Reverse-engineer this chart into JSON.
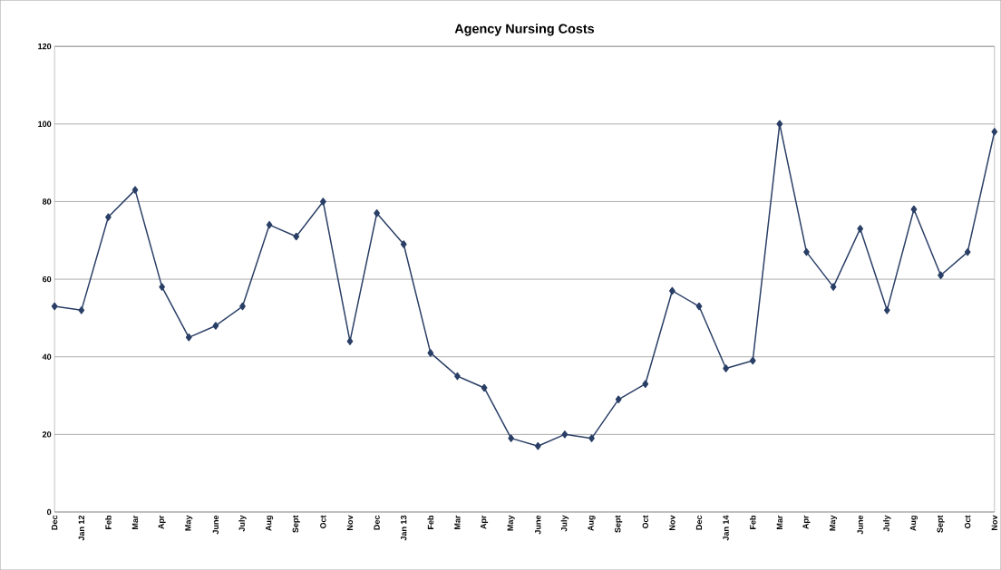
{
  "chart_data": {
    "type": "line",
    "title": "Agency Nursing Costs",
    "categories": [
      "Dec",
      "Jan 12",
      "Feb",
      "Mar",
      "Apr",
      "May",
      "June",
      "July",
      "Aug",
      "Sept",
      "Oct",
      "Nov",
      "Dec",
      "Jan 13",
      "Feb",
      "Mar",
      "Apr",
      "May",
      "June",
      "July",
      "Aug",
      "Sept",
      "Oct",
      "Nov",
      "Dec",
      "Jan 14",
      "Feb",
      "Mar",
      "Apr",
      "May",
      "June",
      "July",
      "Aug",
      "Sept",
      "Oct",
      "Nov"
    ],
    "series": [
      {
        "color": "#2a3f66",
        "values": [
          53,
          52,
          76,
          83,
          58,
          45,
          48,
          53,
          74,
          71,
          80,
          44,
          77,
          69,
          41,
          35,
          32,
          19,
          17,
          20,
          19,
          29,
          33,
          57,
          53,
          37,
          39,
          100,
          67,
          58,
          73,
          52,
          78,
          61,
          67,
          98
        ]
      }
    ],
    "ylim": [
      0,
      120
    ],
    "yticks": [
      0,
      20,
      40,
      60,
      80,
      100,
      120
    ],
    "grid": "y",
    "marker": "diamond",
    "line_style": "solid"
  }
}
